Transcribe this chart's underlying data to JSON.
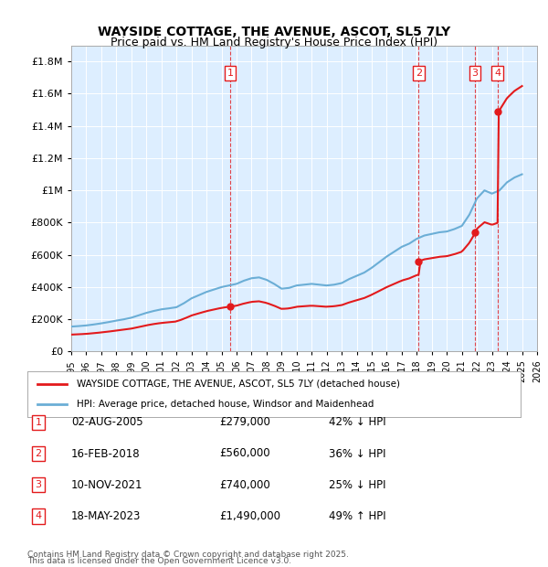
{
  "title": "WAYSIDE COTTAGE, THE AVENUE, ASCOT, SL5 7LY",
  "subtitle": "Price paid vs. HM Land Registry's House Price Index (HPI)",
  "legend_label_red": "WAYSIDE COTTAGE, THE AVENUE, ASCOT, SL5 7LY (detached house)",
  "legend_label_blue": "HPI: Average price, detached house, Windsor and Maidenhead",
  "footer1": "Contains HM Land Registry data © Crown copyright and database right 2025.",
  "footer2": "This data is licensed under the Open Government Licence v3.0.",
  "transactions": [
    {
      "num": 1,
      "date": "02-AUG-2005",
      "price": "£279,000",
      "hpi": "42% ↓ HPI",
      "year": 2005.58
    },
    {
      "num": 2,
      "date": "16-FEB-2018",
      "price": "£560,000",
      "hpi": "36% ↓ HPI",
      "year": 2018.12
    },
    {
      "num": 3,
      "date": "10-NOV-2021",
      "price": "£740,000",
      "hpi": "25% ↓ HPI",
      "year": 2021.86
    },
    {
      "num": 4,
      "date": "18-MAY-2023",
      "price": "£1,490,000",
      "hpi": "49% ↑ HPI",
      "year": 2023.37
    }
  ],
  "hpi_color": "#6baed6",
  "price_color": "#e31a1c",
  "background_plot": "#ddeeff",
  "background_fig": "#ffffff",
  "ylim": [
    0,
    1900000
  ],
  "xlim": [
    1995,
    2026
  ],
  "yticks": [
    0,
    200000,
    400000,
    600000,
    800000,
    1000000,
    1200000,
    1400000,
    1600000,
    1800000
  ],
  "ytick_labels": [
    "£0",
    "£200K",
    "£400K",
    "£600K",
    "£800K",
    "£1M",
    "£1.2M",
    "£1.4M",
    "£1.6M",
    "£1.8M"
  ],
  "xticks": [
    1995,
    1996,
    1997,
    1998,
    1999,
    2000,
    2001,
    2002,
    2003,
    2004,
    2005,
    2006,
    2007,
    2008,
    2009,
    2010,
    2011,
    2012,
    2013,
    2014,
    2015,
    2016,
    2017,
    2018,
    2019,
    2020,
    2021,
    2022,
    2023,
    2024,
    2025,
    2026
  ]
}
